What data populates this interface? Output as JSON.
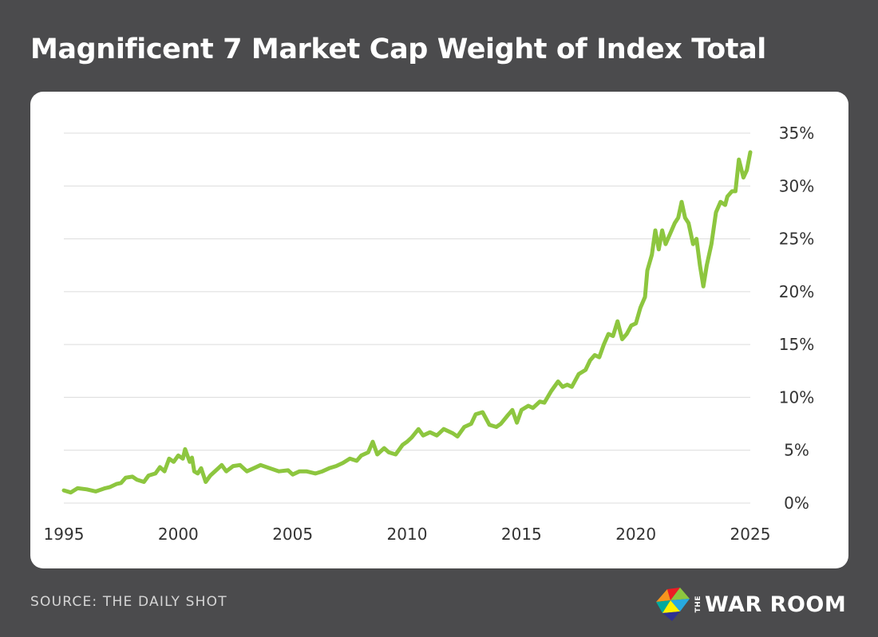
{
  "header": {
    "title": "Magnificent 7 Market Cap Weight of Index Total"
  },
  "footer": {
    "source": "SOURCE: THE DAILY SHOT",
    "logo_the": "THE",
    "logo_text": "WAR ROOM"
  },
  "colors": {
    "background": "#4b4b4d",
    "card": "#ffffff",
    "line": "#8dc63f",
    "grid": "#dcdcdc"
  },
  "chart_data": {
    "type": "line",
    "title": "Magnificent 7 Market Cap Weight of Index Total",
    "xlabel": "",
    "ylabel": "",
    "xlim": [
      1995,
      2025
    ],
    "ylim": [
      0,
      35
    ],
    "x_ticks": [
      1995,
      2000,
      2005,
      2010,
      2015,
      2020,
      2025
    ],
    "x_tick_labels": [
      "1995",
      "2000",
      "2005",
      "2010",
      "2015",
      "2020",
      "2025"
    ],
    "y_ticks": [
      0,
      5,
      10,
      15,
      20,
      25,
      30,
      35
    ],
    "y_tick_labels": [
      "0%",
      "5%",
      "10%",
      "15%",
      "20%",
      "25%",
      "30%",
      "35%"
    ],
    "y_axis_position": "right",
    "grid": "horizontal",
    "legend": "none",
    "series": [
      {
        "color": "#8dc63f",
        "points": [
          [
            1995.0,
            1.2
          ],
          [
            1995.3,
            1.0
          ],
          [
            1995.6,
            1.4
          ],
          [
            1996.0,
            1.3
          ],
          [
            1996.4,
            1.1
          ],
          [
            1996.8,
            1.4
          ],
          [
            1997.0,
            1.5
          ],
          [
            1997.3,
            1.8
          ],
          [
            1997.5,
            1.9
          ],
          [
            1997.7,
            2.4
          ],
          [
            1998.0,
            2.5
          ],
          [
            1998.2,
            2.2
          ],
          [
            1998.5,
            2.0
          ],
          [
            1998.7,
            2.6
          ],
          [
            1999.0,
            2.8
          ],
          [
            1999.2,
            3.4
          ],
          [
            1999.4,
            3.0
          ],
          [
            1999.6,
            4.2
          ],
          [
            1999.8,
            3.9
          ],
          [
            2000.0,
            4.5
          ],
          [
            2000.2,
            4.2
          ],
          [
            2000.3,
            5.1
          ],
          [
            2000.5,
            3.9
          ],
          [
            2000.6,
            4.3
          ],
          [
            2000.7,
            3.0
          ],
          [
            2000.85,
            2.8
          ],
          [
            2001.0,
            3.3
          ],
          [
            2001.2,
            2.0
          ],
          [
            2001.4,
            2.6
          ],
          [
            2001.7,
            3.2
          ],
          [
            2001.9,
            3.6
          ],
          [
            2002.1,
            3.0
          ],
          [
            2002.4,
            3.5
          ],
          [
            2002.7,
            3.6
          ],
          [
            2003.0,
            3.0
          ],
          [
            2003.3,
            3.3
          ],
          [
            2003.6,
            3.6
          ],
          [
            2004.0,
            3.3
          ],
          [
            2004.4,
            3.0
          ],
          [
            2004.8,
            3.1
          ],
          [
            2005.0,
            2.7
          ],
          [
            2005.3,
            3.0
          ],
          [
            2005.6,
            3.0
          ],
          [
            2006.0,
            2.8
          ],
          [
            2006.3,
            3.0
          ],
          [
            2006.6,
            3.3
          ],
          [
            2006.9,
            3.5
          ],
          [
            2007.2,
            3.8
          ],
          [
            2007.5,
            4.2
          ],
          [
            2007.8,
            4.0
          ],
          [
            2008.0,
            4.5
          ],
          [
            2008.3,
            4.8
          ],
          [
            2008.5,
            5.8
          ],
          [
            2008.7,
            4.6
          ],
          [
            2009.0,
            5.2
          ],
          [
            2009.2,
            4.8
          ],
          [
            2009.5,
            4.6
          ],
          [
            2009.8,
            5.5
          ],
          [
            2010.0,
            5.8
          ],
          [
            2010.2,
            6.2
          ],
          [
            2010.5,
            7.0
          ],
          [
            2010.7,
            6.4
          ],
          [
            2011.0,
            6.7
          ],
          [
            2011.3,
            6.4
          ],
          [
            2011.6,
            7.0
          ],
          [
            2012.0,
            6.6
          ],
          [
            2012.2,
            6.3
          ],
          [
            2012.5,
            7.2
          ],
          [
            2012.8,
            7.5
          ],
          [
            2013.0,
            8.4
          ],
          [
            2013.3,
            8.6
          ],
          [
            2013.6,
            7.4
          ],
          [
            2013.9,
            7.2
          ],
          [
            2014.1,
            7.5
          ],
          [
            2014.4,
            8.3
          ],
          [
            2014.6,
            8.8
          ],
          [
            2014.8,
            7.6
          ],
          [
            2015.0,
            8.8
          ],
          [
            2015.3,
            9.2
          ],
          [
            2015.5,
            9.0
          ],
          [
            2015.8,
            9.6
          ],
          [
            2016.0,
            9.5
          ],
          [
            2016.3,
            10.6
          ],
          [
            2016.6,
            11.5
          ],
          [
            2016.8,
            11.0
          ],
          [
            2017.0,
            11.2
          ],
          [
            2017.2,
            11.0
          ],
          [
            2017.5,
            12.2
          ],
          [
            2017.8,
            12.6
          ],
          [
            2018.0,
            13.5
          ],
          [
            2018.2,
            14.0
          ],
          [
            2018.4,
            13.8
          ],
          [
            2018.6,
            15.0
          ],
          [
            2018.8,
            16.0
          ],
          [
            2019.0,
            15.8
          ],
          [
            2019.2,
            17.2
          ],
          [
            2019.4,
            15.5
          ],
          [
            2019.6,
            16.0
          ],
          [
            2019.8,
            16.8
          ],
          [
            2020.0,
            17.0
          ],
          [
            2020.2,
            18.5
          ],
          [
            2020.4,
            19.5
          ],
          [
            2020.5,
            22.0
          ],
          [
            2020.7,
            23.5
          ],
          [
            2020.85,
            25.8
          ],
          [
            2021.0,
            24.0
          ],
          [
            2021.15,
            25.8
          ],
          [
            2021.3,
            24.5
          ],
          [
            2021.5,
            25.5
          ],
          [
            2021.7,
            26.5
          ],
          [
            2021.85,
            27.0
          ],
          [
            2022.0,
            28.5
          ],
          [
            2022.15,
            27.0
          ],
          [
            2022.3,
            26.5
          ],
          [
            2022.5,
            24.5
          ],
          [
            2022.65,
            25.0
          ],
          [
            2022.8,
            22.5
          ],
          [
            2022.95,
            20.5
          ],
          [
            2023.1,
            22.5
          ],
          [
            2023.3,
            24.5
          ],
          [
            2023.5,
            27.5
          ],
          [
            2023.7,
            28.5
          ],
          [
            2023.9,
            28.2
          ],
          [
            2024.0,
            29.0
          ],
          [
            2024.2,
            29.5
          ],
          [
            2024.35,
            29.5
          ],
          [
            2024.5,
            32.5
          ],
          [
            2024.7,
            30.8
          ],
          [
            2024.85,
            31.5
          ],
          [
            2025.0,
            33.2
          ]
        ]
      }
    ]
  }
}
